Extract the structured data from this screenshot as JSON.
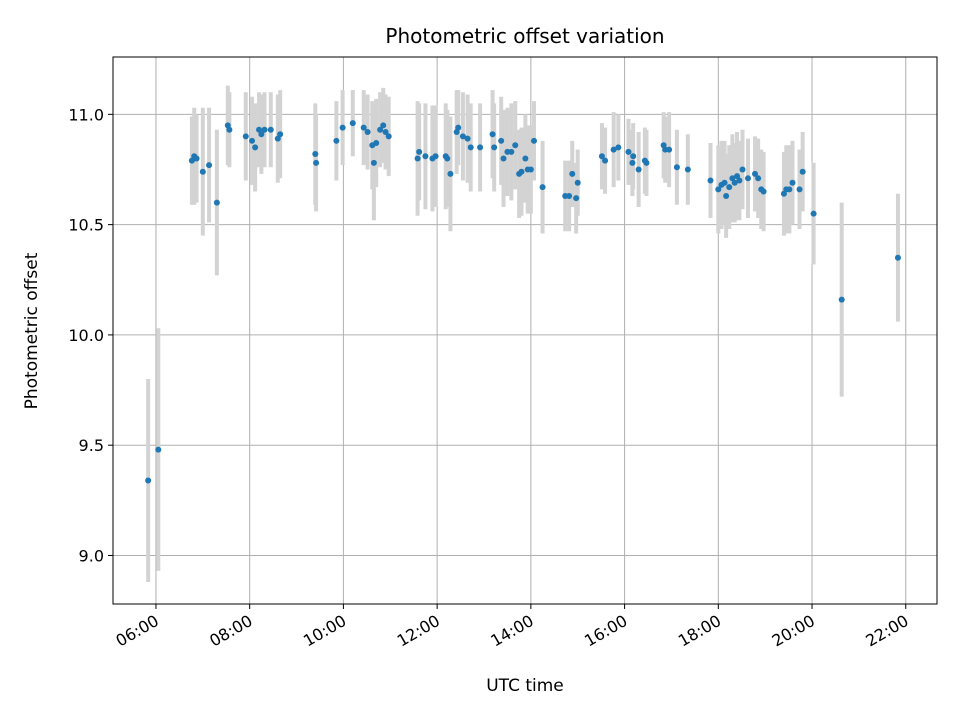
{
  "chart_data": {
    "type": "scatter",
    "title": "Photometric offset variation",
    "xlabel": "UTC time",
    "ylabel": "Photometric offset",
    "x_ticks": [
      "06:00",
      "08:00",
      "10:00",
      "12:00",
      "14:00",
      "16:00",
      "18:00",
      "20:00",
      "22:00"
    ],
    "y_ticks": [
      9.0,
      9.5,
      10.0,
      10.5,
      11.0
    ],
    "xlim": [
      "05:05",
      "22:40"
    ],
    "ylim": [
      8.78,
      11.26
    ],
    "grid": true,
    "colors": {
      "point": "#1f77b4",
      "errorbar": "#d3d3d3",
      "grid": "#b0b0b0"
    },
    "series": [
      {
        "points": [
          {
            "x": "05:50",
            "y": 9.34,
            "err": 0.46
          },
          {
            "x": "06:03",
            "y": 9.48,
            "err": 0.55
          },
          {
            "x": "06:46",
            "y": 10.79,
            "err": 0.2
          },
          {
            "x": "06:49",
            "y": 10.81,
            "err": 0.22
          },
          {
            "x": "06:52",
            "y": 10.8,
            "err": 0.2
          },
          {
            "x": "07:00",
            "y": 10.74,
            "err": 0.29
          },
          {
            "x": "07:08",
            "y": 10.77,
            "err": 0.26
          },
          {
            "x": "07:18",
            "y": 10.6,
            "err": 0.33
          },
          {
            "x": "07:32",
            "y": 10.95,
            "err": 0.18
          },
          {
            "x": "07:34",
            "y": 10.93,
            "err": 0.17
          },
          {
            "x": "07:55",
            "y": 10.9,
            "err": 0.2
          },
          {
            "x": "08:03",
            "y": 10.88,
            "err": 0.2
          },
          {
            "x": "08:07",
            "y": 10.85,
            "err": 0.2
          },
          {
            "x": "08:12",
            "y": 10.93,
            "err": 0.17
          },
          {
            "x": "08:15",
            "y": 10.91,
            "err": 0.18
          },
          {
            "x": "08:19",
            "y": 10.93,
            "err": 0.17
          },
          {
            "x": "08:27",
            "y": 10.93,
            "err": 0.17
          },
          {
            "x": "08:36",
            "y": 10.89,
            "err": 0.2
          },
          {
            "x": "08:39",
            "y": 10.91,
            "err": 0.2
          },
          {
            "x": "09:24",
            "y": 10.82,
            "err": 0.23
          },
          {
            "x": "09:25",
            "y": 10.78,
            "err": 0.22
          },
          {
            "x": "09:51",
            "y": 10.88,
            "err": 0.18
          },
          {
            "x": "09:59",
            "y": 10.94,
            "err": 0.17
          },
          {
            "x": "10:12",
            "y": 10.96,
            "err": 0.15
          },
          {
            "x": "10:26",
            "y": 10.94,
            "err": 0.17
          },
          {
            "x": "10:31",
            "y": 10.92,
            "err": 0.17
          },
          {
            "x": "10:37",
            "y": 10.86,
            "err": 0.2
          },
          {
            "x": "10:39",
            "y": 10.78,
            "err": 0.26
          },
          {
            "x": "10:42",
            "y": 10.87,
            "err": 0.2
          },
          {
            "x": "10:47",
            "y": 10.93,
            "err": 0.17
          },
          {
            "x": "10:51",
            "y": 10.95,
            "err": 0.17
          },
          {
            "x": "10:54",
            "y": 10.92,
            "err": 0.17
          },
          {
            "x": "10:58",
            "y": 10.9,
            "err": 0.18
          },
          {
            "x": "11:35",
            "y": 10.8,
            "err": 0.26
          },
          {
            "x": "11:37",
            "y": 10.83,
            "err": 0.22
          },
          {
            "x": "11:45",
            "y": 10.81,
            "err": 0.24
          },
          {
            "x": "11:54",
            "y": 10.8,
            "err": 0.24
          },
          {
            "x": "11:58",
            "y": 10.81,
            "err": 0.23
          },
          {
            "x": "12:11",
            "y": 10.81,
            "err": 0.24
          },
          {
            "x": "12:13",
            "y": 10.8,
            "err": 0.22
          },
          {
            "x": "12:17",
            "y": 10.73,
            "err": 0.26
          },
          {
            "x": "12:25",
            "y": 10.92,
            "err": 0.19
          },
          {
            "x": "12:27",
            "y": 10.94,
            "err": 0.17
          },
          {
            "x": "12:33",
            "y": 10.9,
            "err": 0.2
          },
          {
            "x": "12:39",
            "y": 10.89,
            "err": 0.2
          },
          {
            "x": "12:43",
            "y": 10.85,
            "err": 0.2
          },
          {
            "x": "12:55",
            "y": 10.85,
            "err": 0.2
          },
          {
            "x": "13:11",
            "y": 10.91,
            "err": 0.2
          },
          {
            "x": "13:13",
            "y": 10.85,
            "err": 0.2
          },
          {
            "x": "13:22",
            "y": 10.88,
            "err": 0.2
          },
          {
            "x": "13:25",
            "y": 10.8,
            "err": 0.22
          },
          {
            "x": "13:30",
            "y": 10.83,
            "err": 0.2
          },
          {
            "x": "13:35",
            "y": 10.83,
            "err": 0.22
          },
          {
            "x": "13:40",
            "y": 10.86,
            "err": 0.2
          },
          {
            "x": "13:45",
            "y": 10.73,
            "err": 0.2
          },
          {
            "x": "13:48",
            "y": 10.74,
            "err": 0.2
          },
          {
            "x": "13:53",
            "y": 10.8,
            "err": 0.2
          },
          {
            "x": "13:56",
            "y": 10.75,
            "err": 0.2
          },
          {
            "x": "14:00",
            "y": 10.75,
            "err": 0.2
          },
          {
            "x": "14:04",
            "y": 10.88,
            "err": 0.18
          },
          {
            "x": "14:15",
            "y": 10.67,
            "err": 0.21
          },
          {
            "x": "14:44",
            "y": 10.63,
            "err": 0.16
          },
          {
            "x": "14:49",
            "y": 10.63,
            "err": 0.16
          },
          {
            "x": "14:53",
            "y": 10.73,
            "err": 0.15
          },
          {
            "x": "14:58",
            "y": 10.62,
            "err": 0.16
          },
          {
            "x": "15:00",
            "y": 10.69,
            "err": 0.15
          },
          {
            "x": "15:31",
            "y": 10.81,
            "err": 0.15
          },
          {
            "x": "15:35",
            "y": 10.79,
            "err": 0.15
          },
          {
            "x": "15:46",
            "y": 10.84,
            "err": 0.17
          },
          {
            "x": "15:52",
            "y": 10.85,
            "err": 0.15
          },
          {
            "x": "16:05",
            "y": 10.83,
            "err": 0.15
          },
          {
            "x": "16:10",
            "y": 10.78,
            "err": 0.15
          },
          {
            "x": "16:11",
            "y": 10.81,
            "err": 0.15
          },
          {
            "x": "16:18",
            "y": 10.75,
            "err": 0.17
          },
          {
            "x": "16:26",
            "y": 10.79,
            "err": 0.15
          },
          {
            "x": "16:28",
            "y": 10.78,
            "err": 0.15
          },
          {
            "x": "16:50",
            "y": 10.86,
            "err": 0.15
          },
          {
            "x": "16:52",
            "y": 10.84,
            "err": 0.15
          },
          {
            "x": "16:57",
            "y": 10.84,
            "err": 0.17
          },
          {
            "x": "17:07",
            "y": 10.76,
            "err": 0.17
          },
          {
            "x": "17:21",
            "y": 10.75,
            "err": 0.16
          },
          {
            "x": "17:50",
            "y": 10.7,
            "err": 0.17
          },
          {
            "x": "18:00",
            "y": 10.66,
            "err": 0.2
          },
          {
            "x": "18:04",
            "y": 10.68,
            "err": 0.2
          },
          {
            "x": "18:08",
            "y": 10.69,
            "err": 0.19
          },
          {
            "x": "18:10",
            "y": 10.63,
            "err": 0.19
          },
          {
            "x": "18:14",
            "y": 10.67,
            "err": 0.19
          },
          {
            "x": "18:18",
            "y": 10.71,
            "err": 0.2
          },
          {
            "x": "18:21",
            "y": 10.69,
            "err": 0.18
          },
          {
            "x": "18:24",
            "y": 10.72,
            "err": 0.2
          },
          {
            "x": "18:27",
            "y": 10.7,
            "err": 0.18
          },
          {
            "x": "18:31",
            "y": 10.75,
            "err": 0.18
          },
          {
            "x": "18:38",
            "y": 10.71,
            "err": 0.18
          },
          {
            "x": "18:47",
            "y": 10.73,
            "err": 0.17
          },
          {
            "x": "18:51",
            "y": 10.71,
            "err": 0.18
          },
          {
            "x": "18:55",
            "y": 10.66,
            "err": 0.18
          },
          {
            "x": "18:58",
            "y": 10.65,
            "err": 0.18
          },
          {
            "x": "19:24",
            "y": 10.64,
            "err": 0.19
          },
          {
            "x": "19:27",
            "y": 10.66,
            "err": 0.2
          },
          {
            "x": "19:31",
            "y": 10.66,
            "err": 0.2
          },
          {
            "x": "19:35",
            "y": 10.69,
            "err": 0.19
          },
          {
            "x": "19:44",
            "y": 10.66,
            "err": 0.18
          },
          {
            "x": "19:48",
            "y": 10.74,
            "err": 0.18
          },
          {
            "x": "20:02",
            "y": 10.55,
            "err": 0.23
          },
          {
            "x": "20:38",
            "y": 10.16,
            "err": 0.44
          },
          {
            "x": "21:50",
            "y": 10.35,
            "err": 0.29
          }
        ]
      }
    ]
  }
}
